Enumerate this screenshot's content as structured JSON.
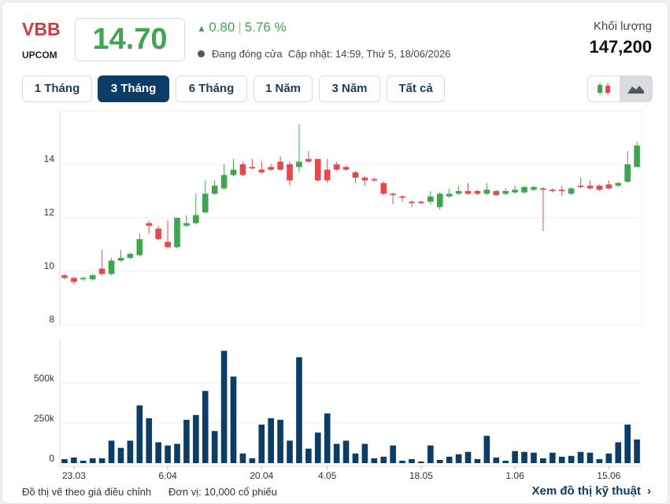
{
  "header": {
    "ticker": "VBB",
    "exchange": "UPCOM",
    "price": "14.70",
    "change": "0.80",
    "change_pct": "5.76 %",
    "status": "Đang đóng cửa",
    "updated": "Cập nhật: 14:59, Thứ 5, 18/06/2026",
    "volume_label": "Khối lượng",
    "volume_value": "147,200"
  },
  "ranges": {
    "items": [
      "1 Tháng",
      "3 Tháng",
      "6 Tháng",
      "1 Năm",
      "3 Năm",
      "Tất cả"
    ],
    "active": 1
  },
  "footer": {
    "note": "Đồ thị vẽ theo giá điều chỉnh",
    "unit": "Đơn vị: 10,000 cổ phiếu",
    "link": "Xem đồ thị kỹ thuật"
  },
  "chart_data": {
    "type": "candlestick",
    "up_color": "#3fa64f",
    "down_color": "#e5484d",
    "grid": true,
    "categories": [
      null,
      "23.03",
      null,
      null,
      null,
      null,
      null,
      null,
      null,
      null,
      null,
      "6.04",
      null,
      null,
      null,
      null,
      null,
      null,
      null,
      null,
      null,
      "20.04",
      null,
      null,
      null,
      null,
      null,
      null,
      "4.05",
      null,
      null,
      null,
      null,
      null,
      null,
      null,
      null,
      null,
      "18.05",
      null,
      null,
      null,
      null,
      null,
      null,
      null,
      null,
      null,
      "1.06",
      null,
      null,
      null,
      null,
      null,
      null,
      null,
      null,
      null,
      "15.06",
      null,
      null,
      null
    ],
    "open": [
      9.85,
      9.75,
      9.7,
      9.7,
      10.1,
      9.9,
      10.4,
      10.5,
      10.6,
      11.8,
      11.6,
      11.1,
      10.9,
      11.7,
      11.8,
      12.2,
      12.9,
      13.1,
      13.6,
      14.0,
      13.9,
      13.8,
      13.9,
      14.1,
      14.0,
      13.9,
      14.2,
      14.2,
      13.8,
      14.0,
      13.9,
      13.7,
      13.5,
      13.45,
      13.3,
      12.9,
      12.8,
      12.6,
      12.6,
      12.6,
      12.4,
      12.8,
      12.9,
      13.0,
      13.0,
      12.9,
      13.0,
      12.9,
      12.95,
      12.95,
      13.05,
      13.1,
      13.05,
      13.05,
      12.9,
      13.2,
      13.2,
      13.2,
      13.25,
      13.2,
      13.35,
      13.9
    ],
    "high": [
      9.9,
      9.8,
      9.8,
      9.9,
      10.8,
      10.5,
      10.8,
      10.7,
      11.4,
      11.9,
      11.7,
      11.9,
      12.0,
      12.1,
      12.9,
      13.4,
      13.4,
      14.0,
      14.2,
      14.1,
      14.2,
      14.1,
      14.0,
      14.3,
      14.1,
      15.5,
      14.5,
      14.2,
      14.2,
      14.1,
      13.95,
      13.75,
      13.55,
      13.5,
      13.35,
      12.95,
      12.85,
      12.65,
      12.65,
      13.0,
      12.95,
      13.1,
      13.2,
      13.3,
      13.05,
      13.3,
      13.05,
      13.1,
      13.2,
      13.2,
      13.2,
      13.15,
      13.1,
      13.2,
      13.15,
      13.5,
      13.4,
      13.25,
      13.4,
      13.35,
      14.5,
      14.85
    ],
    "low": [
      9.7,
      9.5,
      9.65,
      9.65,
      9.85,
      9.85,
      10.35,
      10.45,
      10.55,
      11.4,
      11.15,
      10.85,
      10.85,
      11.65,
      11.75,
      12.15,
      12.85,
      13.05,
      13.55,
      13.55,
      13.8,
      13.65,
      13.75,
      13.75,
      13.2,
      13.7,
      14.05,
      13.35,
      13.3,
      13.75,
      13.75,
      13.3,
      13.2,
      13.35,
      12.85,
      12.5,
      12.6,
      12.4,
      12.5,
      12.5,
      12.3,
      12.75,
      12.85,
      12.85,
      12.85,
      12.85,
      12.8,
      12.85,
      12.9,
      12.9,
      13.0,
      11.5,
      12.95,
      12.8,
      12.85,
      13.1,
      13.05,
      13.0,
      13.05,
      13.15,
      13.3,
      13.9
    ],
    "close": [
      9.75,
      9.6,
      9.75,
      9.85,
      9.9,
      10.4,
      10.5,
      10.65,
      11.2,
      11.7,
      11.2,
      10.9,
      12.0,
      11.8,
      12.1,
      12.9,
      13.2,
      13.6,
      13.8,
      13.6,
      13.85,
      13.7,
      13.8,
      13.8,
      13.4,
      14.1,
      14.1,
      13.4,
      13.4,
      13.8,
      13.8,
      13.5,
      13.4,
      13.4,
      12.9,
      12.85,
      12.75,
      12.55,
      12.55,
      12.8,
      12.9,
      12.9,
      13.0,
      12.9,
      12.9,
      13.05,
      12.85,
      13.0,
      13.05,
      13.15,
      13.15,
      13.05,
      13.0,
      13.0,
      13.1,
      13.15,
      13.1,
      13.05,
      13.1,
      13.3,
      14.0,
      14.7
    ],
    "ylim": [
      8,
      16
    ],
    "yticks": [
      8,
      10,
      12,
      14
    ],
    "volume": {
      "color": "#0b3d67",
      "ylim": [
        0,
        750000
      ],
      "yticks": [
        0,
        {
          "value": 250000,
          "label": "250k"
        },
        {
          "value": 500000,
          "label": "500k"
        }
      ],
      "values": [
        25000,
        35000,
        15000,
        30000,
        30000,
        140000,
        95000,
        140000,
        360000,
        280000,
        130000,
        110000,
        120000,
        270000,
        300000,
        450000,
        200000,
        700000,
        540000,
        60000,
        30000,
        240000,
        280000,
        270000,
        140000,
        660000,
        90000,
        190000,
        310000,
        120000,
        140000,
        60000,
        120000,
        30000,
        40000,
        110000,
        15000,
        25000,
        10000,
        110000,
        20000,
        40000,
        55000,
        70000,
        25000,
        170000,
        35000,
        15000,
        75000,
        70000,
        65000,
        30000,
        65000,
        40000,
        45000,
        70000,
        65000,
        25000,
        60000,
        130000,
        240000,
        147200
      ]
    }
  }
}
